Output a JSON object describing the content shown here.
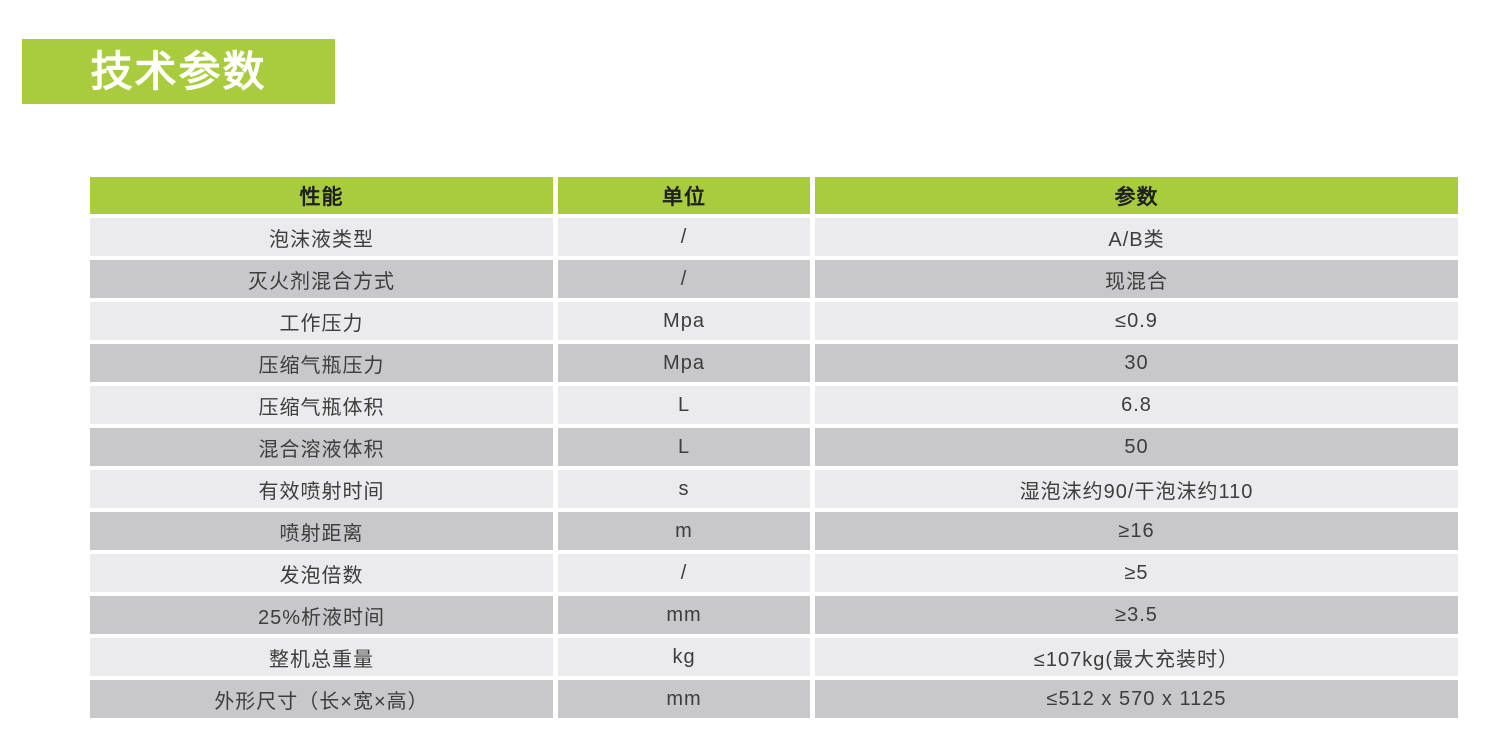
{
  "theme": {
    "green": "#a8cc3d",
    "row-light": "#ebebed",
    "row-dark": "#c8c8ca",
    "header-text": "#1f1f1f",
    "cell-text": "#3d3d3d",
    "page-bg": "#ffffff"
  },
  "banner": {
    "title": "技术参数"
  },
  "table": {
    "headers": [
      "性能",
      "单位",
      "参数"
    ],
    "rows": [
      {
        "name": "泡沫液类型",
        "unit": "/",
        "value": "A/B类"
      },
      {
        "name": "灭火剂混合方式",
        "unit": "/",
        "value": "现混合"
      },
      {
        "name": "工作压力",
        "unit": "Mpa",
        "value": "≤0.9"
      },
      {
        "name": "压缩气瓶压力",
        "unit": "Mpa",
        "value": "30"
      },
      {
        "name": "压缩气瓶体积",
        "unit": "L",
        "value": "6.8"
      },
      {
        "name": "混合溶液体积",
        "unit": "L",
        "value": "50"
      },
      {
        "name": "有效喷射时间",
        "unit": "s",
        "value": "湿泡沫约90/干泡沫约110"
      },
      {
        "name": "喷射距离",
        "unit": "m",
        "value": "≥16"
      },
      {
        "name": "发泡倍数",
        "unit": "/",
        "value": "≥5"
      },
      {
        "name": "25%析液时间",
        "unit": "mm",
        "value": "≥3.5"
      },
      {
        "name": "整机总重量",
        "unit": "kg",
        "value": "≤107kg(最大充装时）"
      },
      {
        "name": "外形尺寸（长×宽×高）",
        "unit": "mm",
        "value": "≤512 x 570 x 1125"
      }
    ]
  }
}
